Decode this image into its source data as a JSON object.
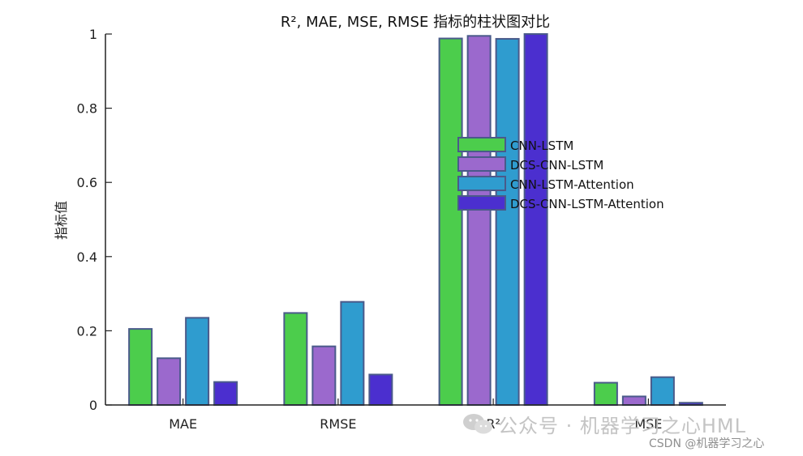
{
  "chart_data": {
    "type": "bar",
    "title": "R², MAE, MSE, RMSE 指标的柱状图对比",
    "xlabel": "",
    "ylabel": "指标值",
    "categories": [
      "MAE",
      "RMSE",
      "R²",
      "MSE"
    ],
    "ylim": [
      0,
      1
    ],
    "yticks": [
      0,
      0.2,
      0.4,
      0.6,
      0.8,
      1
    ],
    "ytick_labels": [
      "0",
      "0.2",
      "0.4",
      "0.6",
      "0.8",
      "1"
    ],
    "grid": false,
    "legend_position": "center",
    "series": [
      {
        "name": "CNN-LSTM",
        "color": "#4ccd4c",
        "values": [
          0.205,
          0.248,
          0.988,
          0.06
        ]
      },
      {
        "name": "DCS-CNN-LSTM",
        "color": "#9b69cd",
        "values": [
          0.126,
          0.158,
          0.995,
          0.023
        ]
      },
      {
        "name": "CNN-LSTM-Attention",
        "color": "#2f9ccf",
        "values": [
          0.235,
          0.278,
          0.987,
          0.075
        ]
      },
      {
        "name": "DCS-CNN-LSTM-Attention",
        "color": "#4b2fcf",
        "values": [
          0.062,
          0.082,
          1.0,
          0.006
        ]
      }
    ],
    "edge_color": "#4a5a8a"
  },
  "watermark": {
    "main": "公众号 · 机器学习之心HML",
    "csdn": "CSDN @机器学习之心"
  }
}
